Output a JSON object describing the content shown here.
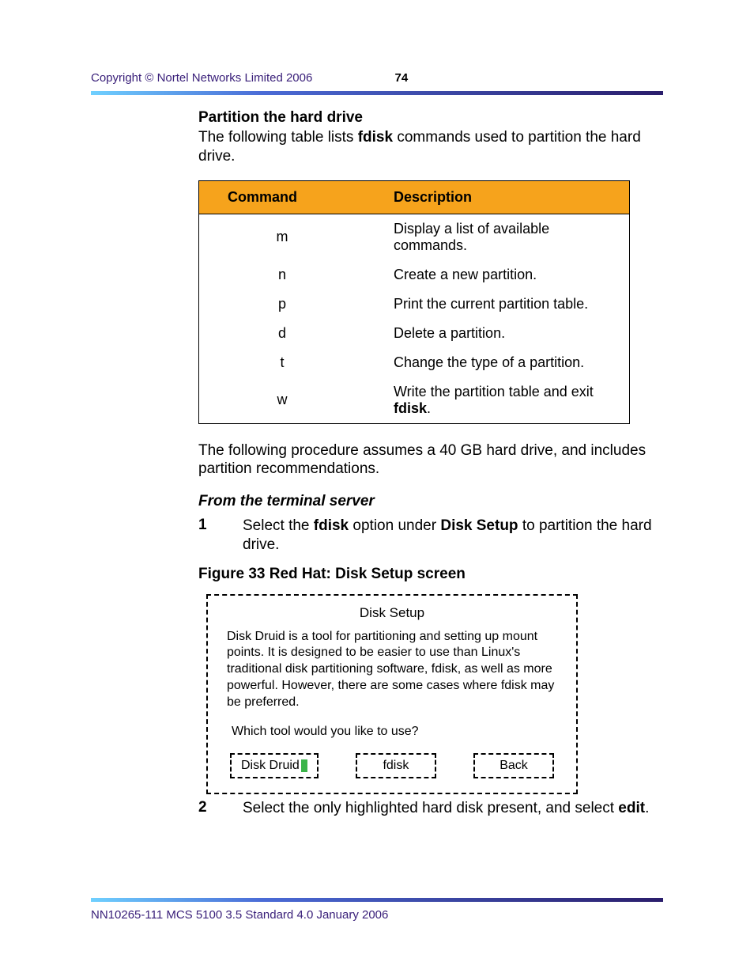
{
  "header": {
    "copyright": "Copyright © Nortel Networks Limited 2006",
    "page_number": "74"
  },
  "rule_gradient": {
    "from": "#6fd0ff",
    "mid": "#4a6bd6",
    "to": "#2a1d6b"
  },
  "section_title": "Partition the hard drive",
  "intro_pre": "The following table lists ",
  "intro_bold": "fdisk",
  "intro_post": " commands used to partition the hard drive.",
  "table": {
    "header_bg": "#f6a31c",
    "columns": [
      "Command",
      "Description"
    ],
    "rows": [
      {
        "cmd": "m",
        "desc": "Display a list of available commands."
      },
      {
        "cmd": "n",
        "desc": "Create a new partition."
      },
      {
        "cmd": "p",
        "desc": "Print the current partition table."
      },
      {
        "cmd": "d",
        "desc": "Delete a partition."
      },
      {
        "cmd": "t",
        "desc": "Change the type of a partition."
      },
      {
        "cmd": "w",
        "desc_pre": "Write the partition table and exit ",
        "desc_bold": "fdisk",
        "desc_post": "."
      }
    ]
  },
  "after_table": "The following procedure assumes a 40 GB hard drive, and includes partition recommendations.",
  "subhead": "From the terminal server",
  "step1": {
    "num": "1",
    "pre": "Select the ",
    "b1": "fdisk",
    "mid": " option under ",
    "b2": "Disk Setup",
    "post": " to partition the hard drive."
  },
  "figure_caption": "Figure 33  Red Hat: Disk Setup screen",
  "figure": {
    "title": "Disk Setup",
    "paragraph": "Disk Druid is a tool for partitioning and setting up mount points. It is designed to be easier to use than Linux's traditional disk partitioning software, fdisk, as well as more powerful. However, there are some cases where fdisk may be preferred.",
    "prompt": "Which tool would you like to use?",
    "cursor_color": "#3bb44a",
    "buttons": {
      "disk_druid": "Disk Druid",
      "fdisk": "fdisk",
      "back": "Back"
    }
  },
  "step2": {
    "num": "2",
    "pre": "Select the only highlighted hard disk present, and select ",
    "b1": "edit",
    "post": "."
  },
  "footer": "NN10265-111   MCS 5100 3.5   Standard   4.0   January 2006"
}
